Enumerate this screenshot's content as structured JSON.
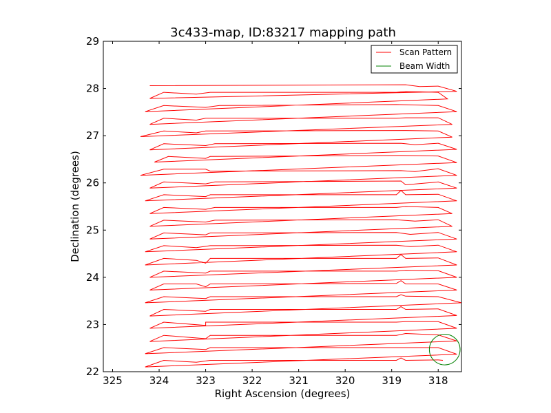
{
  "chart_data": {
    "type": "line",
    "title": "3c433-map, ID:83217 mapping path",
    "xlabel": "Right Ascension (degrees)",
    "ylabel": "Declination (degrees)",
    "xlim": [
      325.2,
      317.5
    ],
    "ylim": [
      22,
      29
    ],
    "x_inverted": true,
    "xticks": [
      325,
      324,
      323,
      322,
      321,
      320,
      319,
      318
    ],
    "yticks": [
      22,
      23,
      24,
      25,
      26,
      27,
      28,
      29
    ],
    "grid": false,
    "legend": {
      "placement": "top-right",
      "entries": [
        {
          "label": "Scan Pattern",
          "color": "#ff0000"
        },
        {
          "label": "Beam Width",
          "color": "#008000"
        }
      ]
    },
    "series": [
      {
        "name": "Scan Pattern",
        "color": "#ff0000",
        "points": [
          [
            324.2,
            28.06
          ],
          [
            318.7,
            28.08
          ],
          [
            318.4,
            28.04
          ],
          [
            318.0,
            28.05
          ],
          [
            317.6,
            27.94
          ],
          [
            324.2,
            27.79
          ],
          [
            323.9,
            27.92
          ],
          [
            323.2,
            27.88
          ],
          [
            322.9,
            27.92
          ],
          [
            318.9,
            27.92
          ],
          [
            318.7,
            27.94
          ],
          [
            318.0,
            27.92
          ],
          [
            317.8,
            27.78
          ],
          [
            324.3,
            27.51
          ],
          [
            323.9,
            27.64
          ],
          [
            323.0,
            27.6
          ],
          [
            322.7,
            27.64
          ],
          [
            318.9,
            27.66
          ],
          [
            318.0,
            27.64
          ],
          [
            317.6,
            27.51
          ],
          [
            324.2,
            27.24
          ],
          [
            323.9,
            27.37
          ],
          [
            323.2,
            27.33
          ],
          [
            323.0,
            27.37
          ],
          [
            318.9,
            27.37
          ],
          [
            318.7,
            27.38
          ],
          [
            318.0,
            27.38
          ],
          [
            317.7,
            27.24
          ],
          [
            324.4,
            26.98
          ],
          [
            323.9,
            27.1
          ],
          [
            323.2,
            27.06
          ],
          [
            323.0,
            27.1
          ],
          [
            318.7,
            27.11
          ],
          [
            318.0,
            27.1
          ],
          [
            317.7,
            26.97
          ],
          [
            324.2,
            26.7
          ],
          [
            323.9,
            26.83
          ],
          [
            323.0,
            26.79
          ],
          [
            322.8,
            26.83
          ],
          [
            318.8,
            26.84
          ],
          [
            318.5,
            26.81
          ],
          [
            318.0,
            26.84
          ],
          [
            317.6,
            26.71
          ],
          [
            324.1,
            26.44
          ],
          [
            323.8,
            26.56
          ],
          [
            323.0,
            26.52
          ],
          [
            322.9,
            26.56
          ],
          [
            318.8,
            26.58
          ],
          [
            318.0,
            26.57
          ],
          [
            317.6,
            26.43
          ],
          [
            324.4,
            26.16
          ],
          [
            323.9,
            26.29
          ],
          [
            323.0,
            26.29
          ],
          [
            322.9,
            26.25
          ],
          [
            318.8,
            26.26
          ],
          [
            318.5,
            26.24
          ],
          [
            318.0,
            26.3
          ],
          [
            317.6,
            26.16
          ],
          [
            324.2,
            25.89
          ],
          [
            323.9,
            26.02
          ],
          [
            323.0,
            25.98
          ],
          [
            322.8,
            26.02
          ],
          [
            318.8,
            26.04
          ],
          [
            318.7,
            25.96
          ],
          [
            318.0,
            26.02
          ],
          [
            317.6,
            25.89
          ],
          [
            324.3,
            25.62
          ],
          [
            323.9,
            25.75
          ],
          [
            323.0,
            25.71
          ],
          [
            322.9,
            25.75
          ],
          [
            318.9,
            25.75
          ],
          [
            318.8,
            25.84
          ],
          [
            318.7,
            25.75
          ],
          [
            318.0,
            25.76
          ],
          [
            317.6,
            25.62
          ],
          [
            324.2,
            25.35
          ],
          [
            323.9,
            25.48
          ],
          [
            323.0,
            25.44
          ],
          [
            322.8,
            25.48
          ],
          [
            318.9,
            25.48
          ],
          [
            318.7,
            25.5
          ],
          [
            318.0,
            25.48
          ],
          [
            317.7,
            25.35
          ],
          [
            324.2,
            25.08
          ],
          [
            323.9,
            25.21
          ],
          [
            323.0,
            25.17
          ],
          [
            322.8,
            25.21
          ],
          [
            318.9,
            25.22
          ],
          [
            318.5,
            25.19
          ],
          [
            318.0,
            25.22
          ],
          [
            317.7,
            25.08
          ],
          [
            324.2,
            24.81
          ],
          [
            323.9,
            24.94
          ],
          [
            323.0,
            24.9
          ],
          [
            322.9,
            24.94
          ],
          [
            318.9,
            24.95
          ],
          [
            318.6,
            24.91
          ],
          [
            318.0,
            24.95
          ],
          [
            317.6,
            24.81
          ],
          [
            324.3,
            24.54
          ],
          [
            323.9,
            24.67
          ],
          [
            323.2,
            24.63
          ],
          [
            322.9,
            24.67
          ],
          [
            318.9,
            24.68
          ],
          [
            318.6,
            24.65
          ],
          [
            318.0,
            24.68
          ],
          [
            317.6,
            24.54
          ],
          [
            324.3,
            24.26
          ],
          [
            323.9,
            24.4
          ],
          [
            323.2,
            24.36
          ],
          [
            323.0,
            24.3
          ],
          [
            322.9,
            24.4
          ],
          [
            318.9,
            24.4
          ],
          [
            318.8,
            24.48
          ],
          [
            318.7,
            24.4
          ],
          [
            318.0,
            24.41
          ],
          [
            317.6,
            24.26
          ],
          [
            324.2,
            24.0
          ],
          [
            323.9,
            24.13
          ],
          [
            323.0,
            24.09
          ],
          [
            322.9,
            24.13
          ],
          [
            318.9,
            24.13
          ],
          [
            318.7,
            24.15
          ],
          [
            318.0,
            24.14
          ],
          [
            317.6,
            24.0
          ],
          [
            324.2,
            23.73
          ],
          [
            323.9,
            23.86
          ],
          [
            323.2,
            23.86
          ],
          [
            323.0,
            23.8
          ],
          [
            322.9,
            23.86
          ],
          [
            318.9,
            23.87
          ],
          [
            318.8,
            23.93
          ],
          [
            318.7,
            23.86
          ],
          [
            318.0,
            23.86
          ],
          [
            317.6,
            23.73
          ],
          [
            324.3,
            23.46
          ],
          [
            323.9,
            23.59
          ],
          [
            323.0,
            23.55
          ],
          [
            322.9,
            23.59
          ],
          [
            318.9,
            23.59
          ],
          [
            318.8,
            23.63
          ],
          [
            318.7,
            23.6
          ],
          [
            318.0,
            23.59
          ],
          [
            317.5,
            23.46
          ],
          [
            324.2,
            23.18
          ],
          [
            323.9,
            23.32
          ],
          [
            323.0,
            23.28
          ],
          [
            322.9,
            23.32
          ],
          [
            318.9,
            23.32
          ],
          [
            318.8,
            23.38
          ],
          [
            318.7,
            23.32
          ],
          [
            318.0,
            23.33
          ],
          [
            317.6,
            23.19
          ],
          [
            324.2,
            22.92
          ],
          [
            323.9,
            23.05
          ],
          [
            323.0,
            22.98
          ],
          [
            323.0,
            23.05
          ],
          [
            318.9,
            23.05
          ],
          [
            318.7,
            23.06
          ],
          [
            318.0,
            23.06
          ],
          [
            317.6,
            22.92
          ],
          [
            324.2,
            22.64
          ],
          [
            323.9,
            22.77
          ],
          [
            323.0,
            22.7
          ],
          [
            322.9,
            22.77
          ],
          [
            318.9,
            22.77
          ],
          [
            318.7,
            22.81
          ],
          [
            318.0,
            22.78
          ],
          [
            317.6,
            22.65
          ],
          [
            324.3,
            22.38
          ],
          [
            323.9,
            22.51
          ],
          [
            323.0,
            22.47
          ],
          [
            322.9,
            22.51
          ],
          [
            318.9,
            22.51
          ],
          [
            318.0,
            22.51
          ],
          [
            317.6,
            22.37
          ],
          [
            324.3,
            22.1
          ],
          [
            323.9,
            22.24
          ],
          [
            323.2,
            22.2
          ],
          [
            322.9,
            22.24
          ],
          [
            318.9,
            22.24
          ],
          [
            318.8,
            22.29
          ],
          [
            318.7,
            22.24
          ],
          [
            318.0,
            22.25
          ],
          [
            317.9,
            22.24
          ]
        ]
      },
      {
        "name": "Beam Width",
        "color": "#008000",
        "shape": "circle",
        "center": [
          317.86,
          22.47
        ],
        "radius_deg": 0.33
      }
    ]
  }
}
